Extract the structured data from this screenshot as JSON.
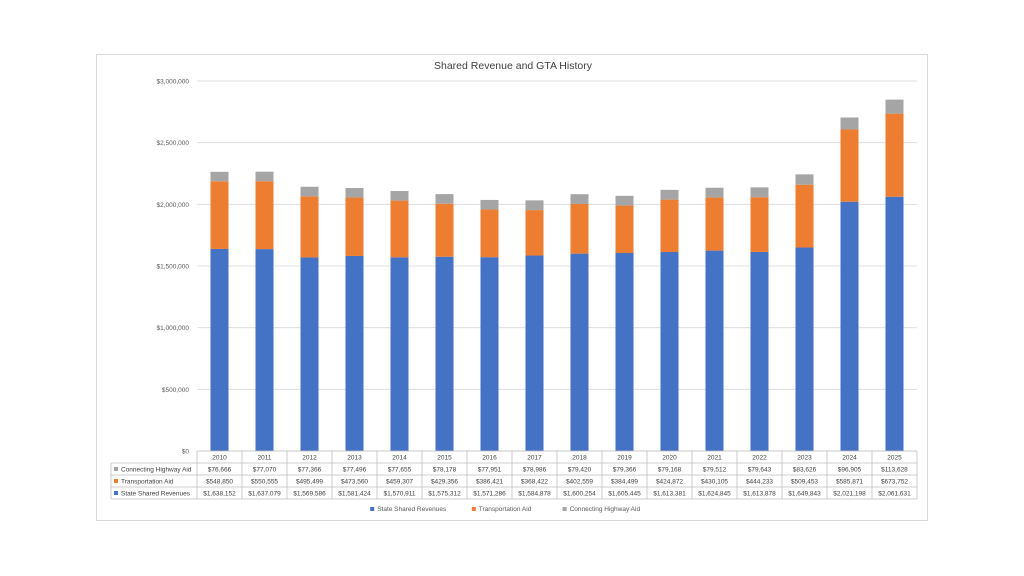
{
  "chart_data": {
    "type": "bar",
    "stacked": true,
    "title": "Shared Revenue and GTA History",
    "categories": [
      "2010",
      "2011",
      "2012",
      "2013",
      "2014",
      "2015",
      "2016",
      "2017",
      "2018",
      "2019",
      "2020",
      "2021",
      "2022",
      "2023",
      "2024",
      "2025"
    ],
    "ylim": [
      0,
      3000000
    ],
    "yticks": [
      "$0",
      "$500,000",
      "$1,000,000",
      "$1,500,000",
      "$2,000,000",
      "$2,500,000",
      "$3,000,000"
    ],
    "grid": true,
    "legend_position": "bottom",
    "series": [
      {
        "name": "State Shared Revenues",
        "color": "#4472c4",
        "values": [
          1638152,
          1637079,
          1569586,
          1581424,
          1570911,
          1575312,
          1571286,
          1584878,
          1600254,
          1605445,
          1613381,
          1624845,
          1613878,
          1649843,
          2021198,
          2061631
        ],
        "labels": [
          "$1,638,152",
          "$1,637,079",
          "$1,569,586",
          "$1,581,424",
          "$1,570,911",
          "$1,575,312",
          "$1,571,286",
          "$1,584,878",
          "$1,600,254",
          "$1,605,445",
          "$1,613,381",
          "$1,624,845",
          "$1,613,878",
          "$1,649,843",
          "$2,021,198",
          "$2,061,631"
        ]
      },
      {
        "name": "Transportation Aid",
        "color": "#ed7d31",
        "values": [
          548850,
          550555,
          495499,
          473560,
          459307,
          429356,
          386421,
          368422,
          402559,
          384499,
          424872,
          430105,
          444233,
          509453,
          585871,
          673752
        ],
        "labels": [
          "$548,850",
          "$550,555",
          "$495,499",
          "$473,560",
          "$459,307",
          "$429,356",
          "$386,421",
          "$368,422",
          "$402,559",
          "$384,499",
          "$424,872",
          "$430,105",
          "$444,233",
          "$509,453",
          "$585,871",
          "$673,752"
        ]
      },
      {
        "name": "Connecting Highway Aid",
        "color": "#a5a5a5",
        "values": [
          76666,
          77070,
          77366,
          77496,
          77655,
          78178,
          77951,
          78986,
          79420,
          79366,
          79168,
          79512,
          79643,
          83626,
          96905,
          113628
        ],
        "labels": [
          "$76,666",
          "$77,070",
          "$77,366",
          "$77,496",
          "$77,655",
          "$78,178",
          "$77,951",
          "$78,986",
          "$79,420",
          "$79,366",
          "$79,168",
          "$79,512",
          "$79,643",
          "$83,626",
          "$96,905",
          "$113,628"
        ]
      }
    ]
  }
}
